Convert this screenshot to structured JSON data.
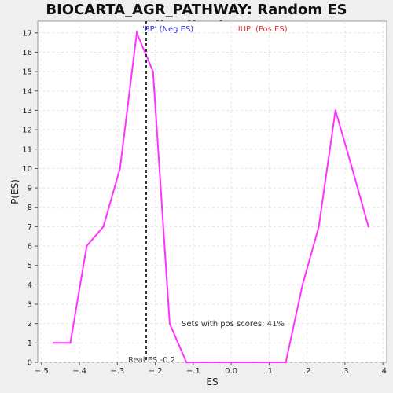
{
  "chart_data": {
    "type": "line",
    "title": "BIOCARTA_AGR_PATHWAY: Random ES distribution",
    "xlabel": "ES",
    "ylabel": "P(ES)",
    "xlim": [
      -0.51,
      0.41
    ],
    "ylim": [
      0,
      17.6
    ],
    "grid": true,
    "x_ticks": [
      -0.5,
      -0.4,
      -0.3,
      -0.2,
      -0.1,
      0.0,
      0.1,
      0.2,
      0.3,
      0.4
    ],
    "y_ticks": [
      0,
      1,
      2,
      3,
      4,
      5,
      6,
      7,
      8,
      9,
      10,
      11,
      12,
      13,
      14,
      15,
      16,
      17
    ],
    "series": [
      {
        "color": "#ff33ff",
        "x": [
          -0.468,
          -0.424,
          -0.381,
          -0.337,
          -0.293,
          -0.249,
          -0.206,
          -0.162,
          -0.118,
          -0.074,
          -0.031,
          0.013,
          0.057,
          0.1,
          0.144,
          0.188,
          0.231,
          0.275,
          0.319,
          0.362
        ],
        "y": [
          1,
          1,
          6,
          7,
          10,
          17,
          15,
          2,
          0,
          0,
          0,
          0,
          0,
          0,
          0,
          4,
          7,
          13,
          10,
          7
        ]
      }
    ],
    "real_es": -0.2,
    "annotations": {
      "neg_label": "'BP' (Neg ES)",
      "pos_label": "'IUP' (Pos ES)",
      "pos_scores": "Sets with pos scores: 41%",
      "real_es": "Real ES -0.2"
    },
    "colors": {
      "neg": "#3333cc",
      "pos": "#dd3333",
      "line": "#ff33ff",
      "dashed": "#333333"
    }
  }
}
